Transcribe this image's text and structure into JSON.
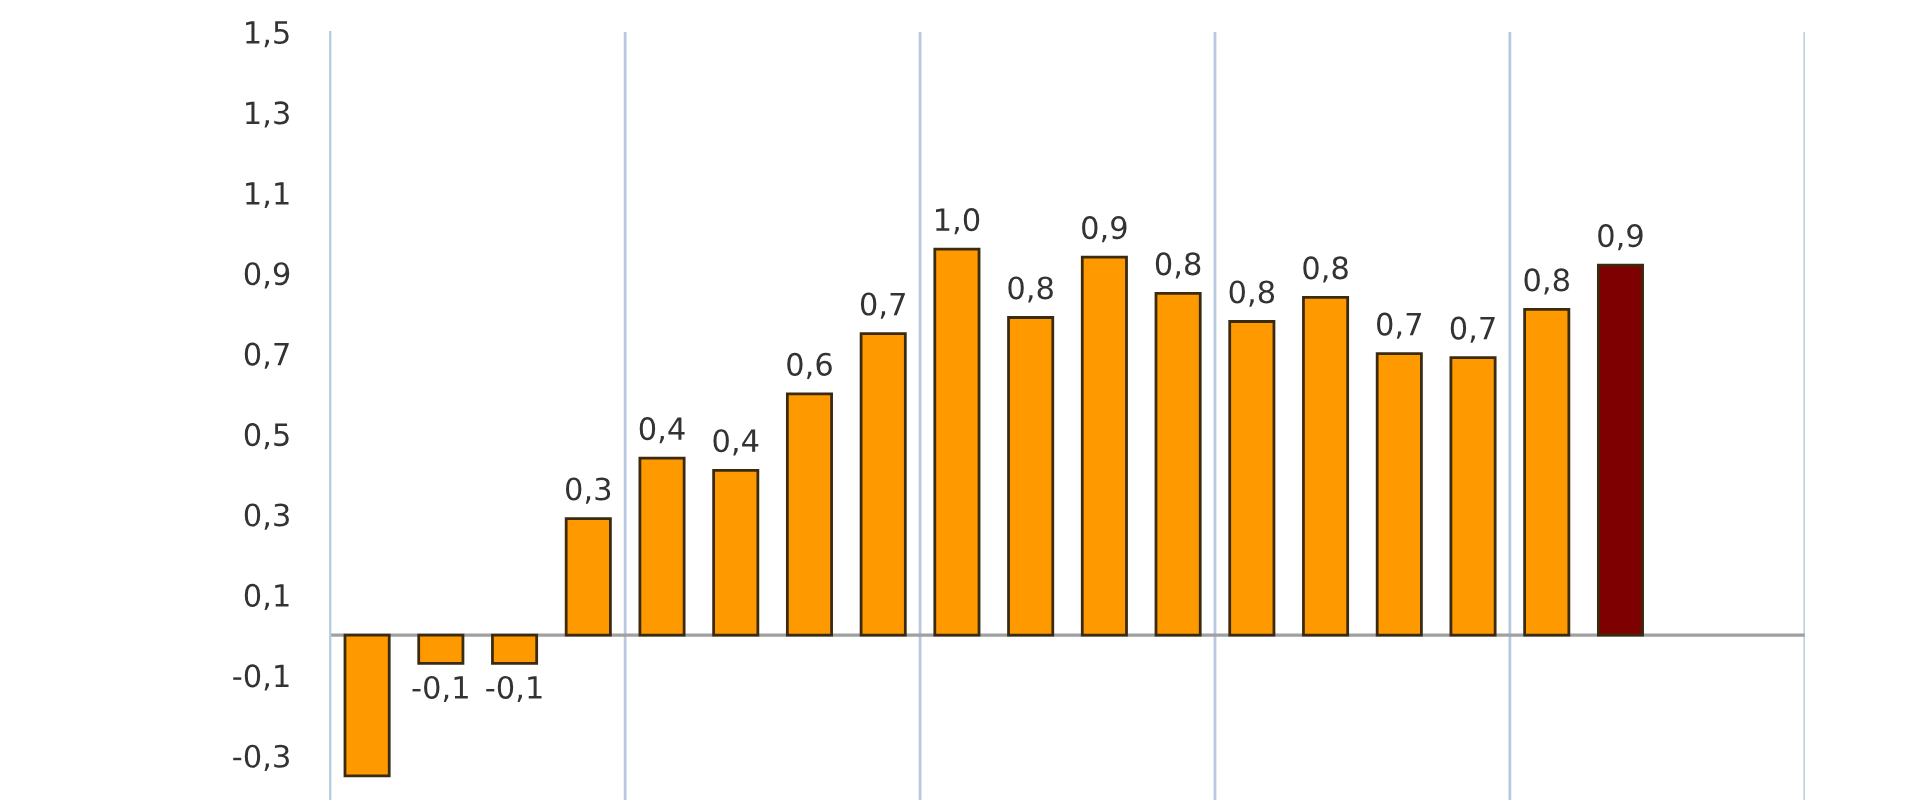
{
  "chart_data": {
    "type": "bar",
    "categories": [
      null,
      null,
      null,
      null,
      null,
      null,
      null,
      null,
      null,
      null,
      null,
      null,
      null,
      null,
      null,
      null,
      null,
      null,
      null,
      null
    ],
    "values": [
      -0.35,
      -0.07,
      -0.07,
      0.29,
      0.44,
      0.41,
      0.6,
      0.75,
      0.96,
      0.79,
      0.94,
      0.85,
      0.78,
      0.84,
      0.7,
      0.69,
      0.81,
      0.92,
      null,
      null
    ],
    "colors": [
      "#ff9900",
      "#ff9900",
      "#ff9900",
      "#ff9900",
      "#ff9900",
      "#ff9900",
      "#ff9900",
      "#ff9900",
      "#ff9900",
      "#ff9900",
      "#ff9900",
      "#ff9900",
      "#ff9900",
      "#ff9900",
      "#ff9900",
      "#ff9900",
      "#ff9900",
      "#7f0000",
      null,
      null
    ],
    "value_labels": [
      null,
      "-0,1",
      "-0,1",
      "0,3",
      "0,4",
      "0,4",
      "0,6",
      "0,7",
      "1,0",
      "0,8",
      "0,9",
      "0,8",
      "0,8",
      "0,8",
      "0,7",
      "0,7",
      "0,8",
      "0,9",
      null,
      null
    ],
    "ylim": [
      -0.41,
      1.5
    ],
    "yticks": [
      {
        "value": -0.3,
        "label": "-0,3"
      },
      {
        "value": -0.1,
        "label": "-0,1"
      },
      {
        "value": 0.1,
        "label": "0,1"
      },
      {
        "value": 0.3,
        "label": "0,3"
      },
      {
        "value": 0.5,
        "label": "0,5"
      },
      {
        "value": 0.7,
        "label": "0,7"
      },
      {
        "value": 0.9,
        "label": "0,9"
      },
      {
        "value": 1.1,
        "label": "1,1"
      },
      {
        "value": 1.3,
        "label": "1,3"
      },
      {
        "value": 1.5,
        "label": "1,5"
      }
    ],
    "grid": "x"
  }
}
